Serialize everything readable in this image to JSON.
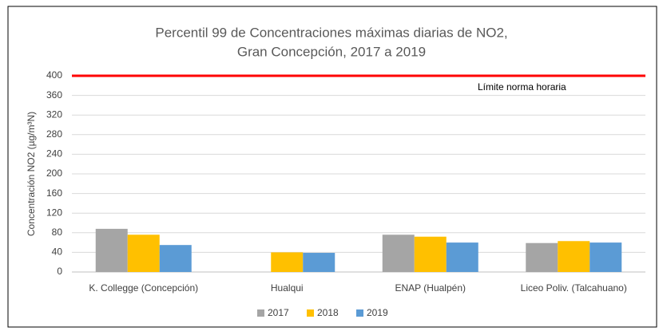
{
  "chart_data": {
    "type": "bar",
    "title": [
      "Percentil 99 de Concentraciones máximas diarias de NO2,",
      "Gran Concepción, 2017 a 2019"
    ],
    "y_label": "Concentración NO2 (µg/m³N)",
    "categories": [
      "K. Collegge (Concepción)",
      "Hualqui",
      "ENAP (Hualpén)",
      "Liceo Poliv. (Talcahuano)"
    ],
    "series": [
      {
        "name": "2017",
        "color": "#a5a5a5",
        "values": [
          88,
          null,
          76,
          59
        ]
      },
      {
        "name": "2018",
        "color": "#ffc000",
        "values": [
          76,
          40,
          72,
          63
        ]
      },
      {
        "name": "2019",
        "color": "#5b9bd5",
        "values": [
          55,
          39,
          60,
          60
        ]
      }
    ],
    "ylim": [
      0,
      400
    ],
    "yticks": [
      0,
      40,
      80,
      120,
      160,
      200,
      240,
      280,
      320,
      360,
      400
    ],
    "grid": true,
    "reference_line": {
      "value": 400,
      "label": "Límite norma horaria",
      "color": "#ff0000"
    },
    "legend": "bottom"
  }
}
